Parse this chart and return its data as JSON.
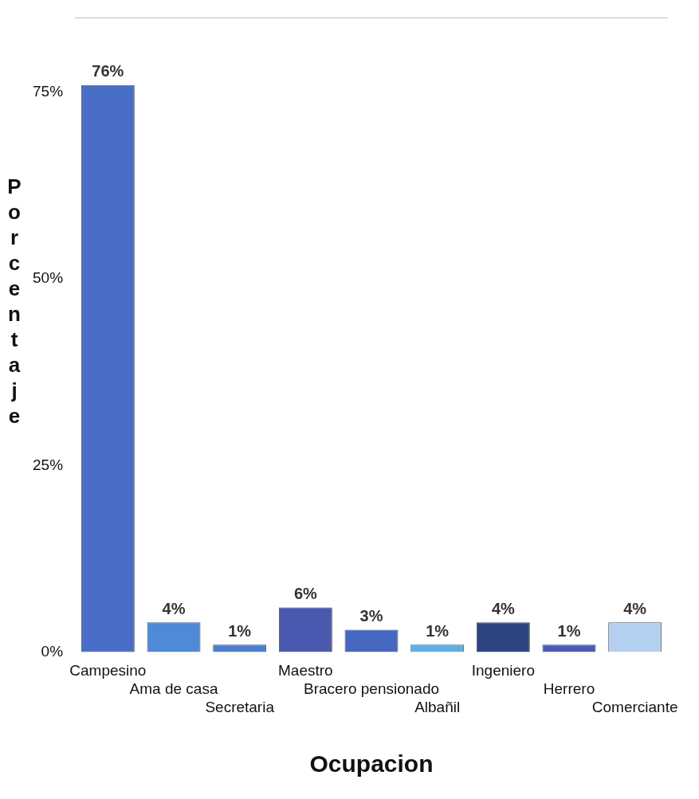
{
  "chart_data": {
    "type": "bar",
    "xlabel": "Ocupacion",
    "ylabel": "Porcentaje",
    "categories": [
      "Campesino",
      "Ama de casa",
      "Secretaria",
      "Maestro",
      "Bracero pensionado",
      "Albañil",
      "Ingeniero",
      "Herrero",
      "Comerciante"
    ],
    "values": [
      76,
      4,
      1,
      6,
      3,
      1,
      4,
      1,
      4
    ],
    "colors": [
      "#4a6ec8",
      "#4f8ad6",
      "#4a7fd0",
      "#4a58b0",
      "#4668c0",
      "#5ab0e6",
      "#2c4480",
      "#4a5ab8",
      "#b4d0f0"
    ],
    "ylim": [
      0,
      85
    ],
    "yticks": [
      {
        "value": 0,
        "label": "0%"
      },
      {
        "value": 25,
        "label": "25%"
      },
      {
        "value": 50,
        "label": "50%"
      },
      {
        "value": 75,
        "label": "75%"
      }
    ],
    "value_labels": [
      "76%",
      "4%",
      "1%",
      "6%",
      "3%",
      "1%",
      "4%",
      "1%",
      "4%"
    ],
    "grid": false,
    "legend": false
  }
}
